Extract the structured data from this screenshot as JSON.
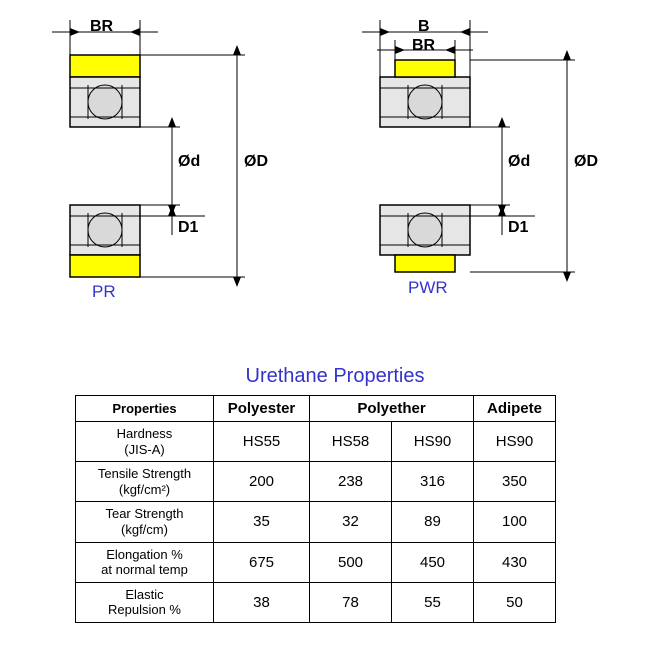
{
  "diagrams": {
    "left": {
      "name": "PR",
      "dim_labels": {
        "br": "BR",
        "d": "Ød",
        "D1": "D1",
        "OD": "ØD"
      },
      "colors": {
        "outline": "#000000",
        "urethane": "#ffff00",
        "ring": "#e6e6e6",
        "ball": "#d9d9d9",
        "dim_line": "#0000cc"
      }
    },
    "right": {
      "name": "PWR",
      "dim_labels": {
        "B": "B",
        "br": "BR",
        "d": "Ød",
        "D1": "D1",
        "OD": "ØD"
      },
      "colors": {
        "outline": "#000000",
        "urethane": "#ffff00",
        "ring": "#e6e6e6",
        "ball": "#d9d9d9",
        "dim_line": "#0000cc"
      }
    }
  },
  "table": {
    "title": "Urethane Properties",
    "headers": {
      "properties": "Properties",
      "polyester": "Polyester",
      "polyether": "Polyether",
      "adipete": "Adipete"
    },
    "rows": [
      {
        "prop": "Hardness\n(JIS-A)",
        "polyester": "HS55",
        "polyether1": "HS58",
        "polyether2": "HS90",
        "adipete": "HS90"
      },
      {
        "prop": "Tensile Strength\n(kgf/cm²)",
        "polyester": "200",
        "polyether1": "238",
        "polyether2": "316",
        "adipete": "350"
      },
      {
        "prop": "Tear Strength\n(kgf/cm)",
        "polyester": "35",
        "polyether1": "32",
        "polyether2": "89",
        "adipete": "100"
      },
      {
        "prop": "Elongation %\nat normal temp",
        "polyester": "675",
        "polyether1": "500",
        "polyether2": "450",
        "adipete": "430"
      },
      {
        "prop": "Elastic\nRepulsion %",
        "polyester": "38",
        "polyether1": "78",
        "polyether2": "55",
        "adipete": "50"
      }
    ]
  }
}
